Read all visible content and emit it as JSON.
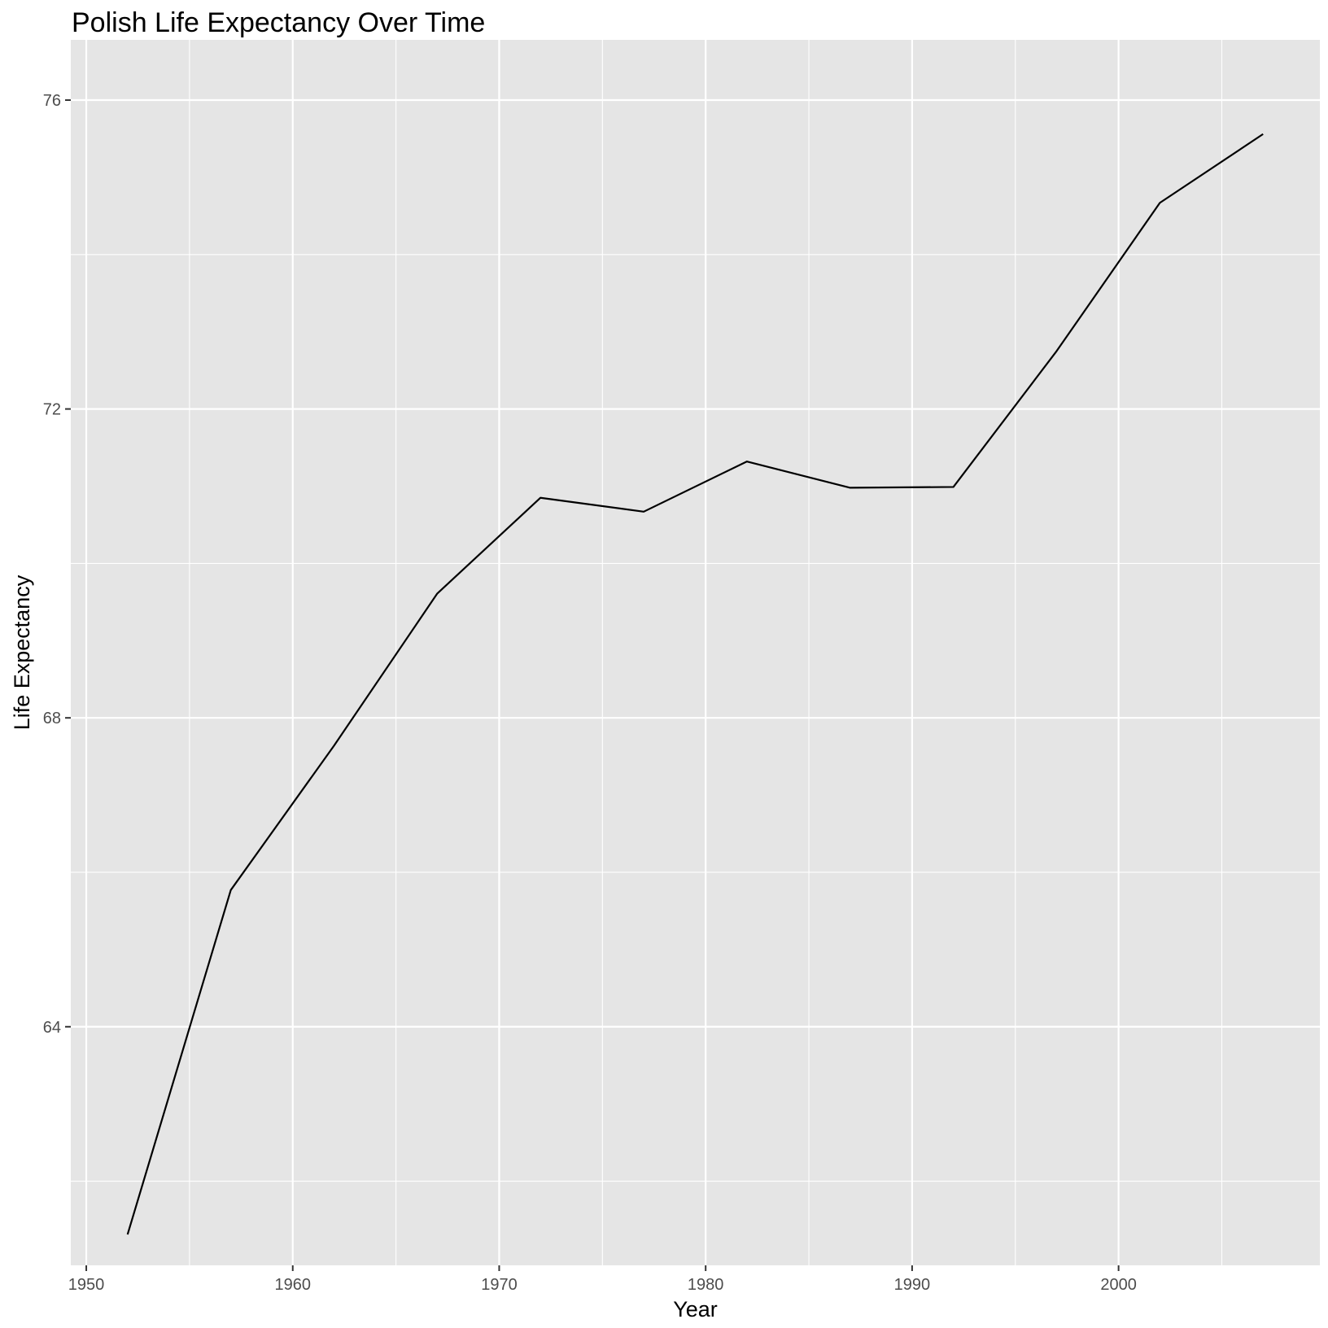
{
  "chart_data": {
    "type": "line",
    "title": "Polish Life Expectancy Over Time",
    "xlabel": "Year",
    "ylabel": "Life Expectancy",
    "xlim": [
      1949.25,
      2009.75
    ],
    "ylim": [
      60.91,
      76.78
    ],
    "x_major_ticks": [
      1950,
      1960,
      1970,
      1980,
      1990,
      2000
    ],
    "x_minor_ticks": [
      1955,
      1965,
      1975,
      1985,
      1995,
      2005
    ],
    "y_major_ticks": [
      64,
      68,
      72,
      76
    ],
    "y_minor_ticks": [
      62,
      66,
      70,
      74
    ],
    "x_tick_labels": [
      "1950",
      "1960",
      "1970",
      "1980",
      "1990",
      "2000"
    ],
    "y_tick_labels": [
      "64",
      "68",
      "72",
      "76"
    ],
    "grid": true,
    "legend": "none",
    "series": [
      {
        "x": [
          1952,
          1957,
          1962,
          1967,
          1972,
          1977,
          1982,
          1987,
          1992,
          1997,
          2002,
          2007
        ],
        "y": [
          61.31,
          65.77,
          67.64,
          69.61,
          70.85,
          70.67,
          71.32,
          70.98,
          70.99,
          72.75,
          74.67,
          75.56
        ]
      }
    ],
    "colors": {
      "panel_background": "#E5E5E5",
      "grid_line": "#FFFFFF",
      "line": "#000000",
      "tick_mark": "#333333",
      "tick_label": "#4D4D4D",
      "text": "#000000"
    }
  }
}
